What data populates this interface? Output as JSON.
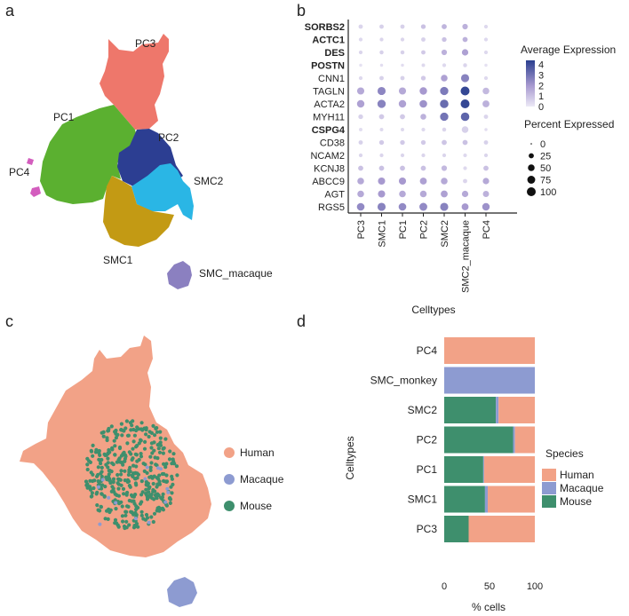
{
  "panels": {
    "a": {
      "letter": "a",
      "cluster_labels": [
        "PC3",
        "PC1",
        "PC2",
        "PC4",
        "SMC2",
        "SMC1",
        "SMC_macaque"
      ],
      "cluster_colors": {
        "PC3": "#EE776B",
        "PC1": "#5BB030",
        "PC2": "#2C3E92",
        "PC4": "#D35DBE",
        "SMC2": "#2AB6E5",
        "SMC1": "#C39A14",
        "SMC_macaque": "#8B80C0"
      }
    },
    "b": {
      "letter": "b"
    },
    "c": {
      "letter": "c",
      "legend": [
        {
          "label": "Human",
          "color": "#F2A287"
        },
        {
          "label": "Macaque",
          "color": "#8D9BD1"
        },
        {
          "label": "Mouse",
          "color": "#3E8F6D"
        }
      ]
    },
    "d": {
      "letter": "d"
    }
  },
  "chart_data": [
    {
      "type": "scatter",
      "panel": "b",
      "xlabel": "Celltypes",
      "ylabel": "",
      "categories": [
        "PC3",
        "SMC1",
        "PC1",
        "PC2",
        "SMC2",
        "SMC2_macaque",
        "PC4"
      ],
      "genes": [
        "SORBS2",
        "ACTC1",
        "DES",
        "POSTN",
        "CNN1",
        "TAGLN",
        "ACTA2",
        "MYH11",
        "CSPG4",
        "CD38",
        "NCAM2",
        "KCNJ8",
        "ABCC9",
        "AGT",
        "RGS5"
      ],
      "bold_genes": [
        "SORBS2",
        "ACTC1",
        "DES",
        "POSTN",
        "CSPG4"
      ],
      "avg_expression": [
        [
          0.5,
          0.6,
          0.6,
          1.0,
          1.3,
          1.4,
          0.4
        ],
        [
          0.4,
          0.5,
          0.5,
          0.6,
          1.0,
          1.4,
          0.4
        ],
        [
          0.5,
          0.6,
          0.6,
          0.8,
          1.4,
          1.8,
          0.4
        ],
        [
          0.2,
          0.3,
          0.3,
          0.4,
          0.4,
          0.5,
          0.2
        ],
        [
          0.4,
          0.6,
          0.6,
          0.8,
          1.8,
          2.6,
          0.4
        ],
        [
          1.6,
          2.5,
          1.6,
          2.0,
          2.8,
          4.2,
          1.2
        ],
        [
          1.8,
          2.6,
          1.8,
          2.2,
          3.2,
          4.2,
          1.4
        ],
        [
          0.6,
          0.8,
          0.8,
          1.4,
          3.0,
          3.4,
          0.5
        ],
        [
          0.3,
          0.4,
          0.4,
          0.4,
          0.5,
          0.6,
          0.3
        ],
        [
          0.6,
          0.8,
          0.8,
          0.8,
          0.9,
          1.0,
          0.6
        ],
        [
          0.5,
          0.5,
          0.5,
          0.5,
          0.5,
          0.4,
          0.5
        ],
        [
          1.0,
          1.0,
          1.0,
          1.0,
          1.2,
          0.4,
          1.0
        ],
        [
          1.6,
          2.0,
          2.0,
          1.8,
          1.6,
          0.5,
          1.6
        ],
        [
          1.6,
          2.0,
          1.6,
          1.6,
          1.8,
          1.6,
          1.4
        ],
        [
          2.4,
          2.6,
          2.4,
          2.4,
          2.6,
          2.0,
          2.2
        ]
      ],
      "pct_expressed": [
        [
          15,
          15,
          15,
          20,
          25,
          30,
          10
        ],
        [
          10,
          10,
          10,
          15,
          20,
          25,
          10
        ],
        [
          10,
          12,
          12,
          15,
          30,
          45,
          10
        ],
        [
          5,
          5,
          5,
          8,
          10,
          12,
          5
        ],
        [
          10,
          15,
          15,
          20,
          50,
          80,
          10
        ],
        [
          60,
          80,
          60,
          65,
          85,
          100,
          50
        ],
        [
          65,
          85,
          65,
          70,
          90,
          100,
          55
        ],
        [
          20,
          25,
          25,
          35,
          85,
          90,
          15
        ],
        [
          8,
          8,
          8,
          10,
          12,
          50,
          5
        ],
        [
          15,
          20,
          20,
          20,
          25,
          25,
          15
        ],
        [
          10,
          10,
          10,
          10,
          10,
          10,
          10
        ],
        [
          25,
          25,
          25,
          25,
          30,
          10,
          25
        ],
        [
          50,
          60,
          60,
          55,
          50,
          15,
          45
        ],
        [
          50,
          60,
          50,
          50,
          55,
          45,
          40
        ],
        [
          70,
          80,
          70,
          75,
          80,
          55,
          65
        ]
      ],
      "color_legend": {
        "title": "Average Expression",
        "ticks": [
          4,
          3,
          2,
          1,
          0
        ],
        "range": [
          0,
          4.4
        ],
        "low_color": "#ECE9F6",
        "high_color": "#2A3F8F"
      },
      "size_legend": {
        "title": "Percent Expressed",
        "ticks": [
          0,
          25,
          50,
          75,
          100
        ]
      }
    },
    {
      "type": "bar",
      "panel": "d",
      "orientation": "horizontal",
      "stacked": true,
      "ylabel": "Celltypes",
      "xlabel": "% cells",
      "categories": [
        "PC4",
        "SMC_monkey",
        "SMC2",
        "PC2",
        "PC1",
        "SMC1",
        "PC3"
      ],
      "xlim": [
        0,
        100
      ],
      "xticks": [
        0,
        50,
        100
      ],
      "legend_title": "Species",
      "series": [
        {
          "name": "Mouse",
          "color": "#3E8F6D",
          "values": [
            0,
            0,
            57,
            76,
            43,
            45,
            27
          ]
        },
        {
          "name": "Macaque",
          "color": "#8D9BD1",
          "values": [
            0,
            100,
            3,
            2,
            1,
            3,
            0
          ]
        },
        {
          "name": "Human",
          "color": "#F2A287",
          "values": [
            100,
            0,
            40,
            22,
            56,
            52,
            73
          ]
        }
      ],
      "legend_order": [
        "Human",
        "Macaque",
        "Mouse"
      ]
    }
  ]
}
